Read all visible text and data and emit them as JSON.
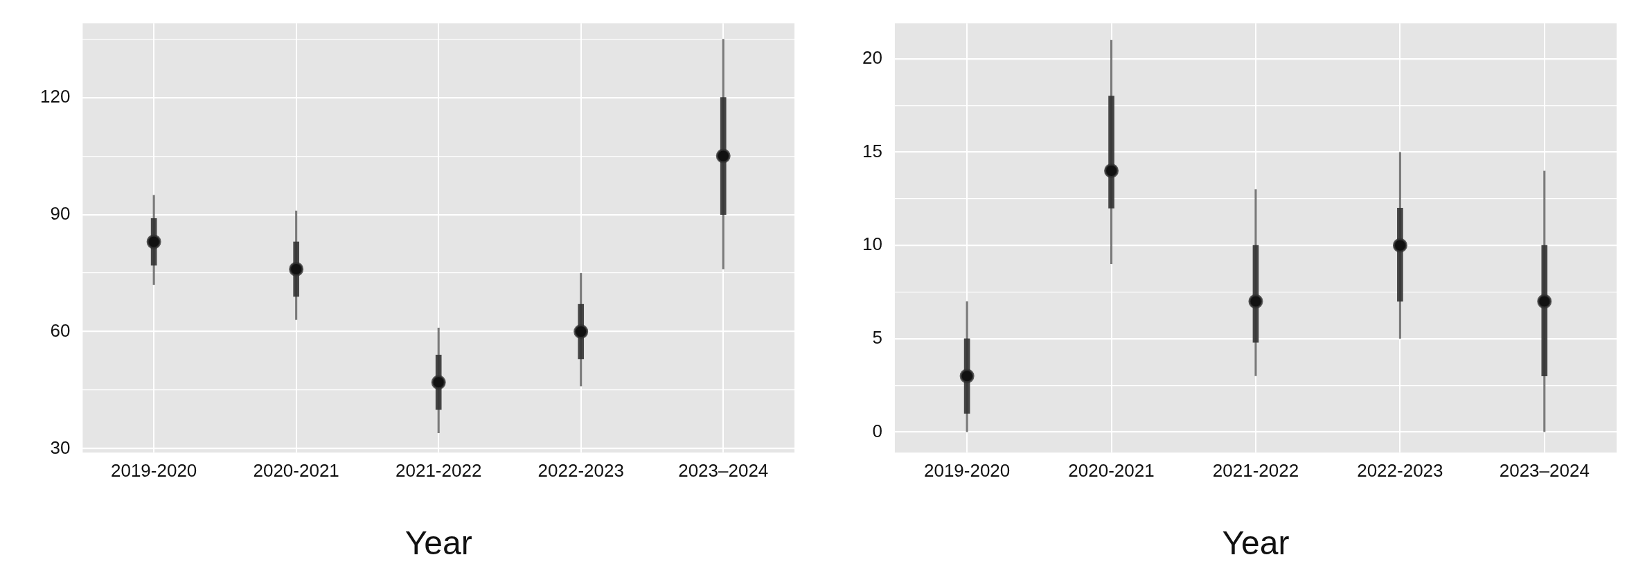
{
  "chart_data": [
    {
      "type": "box",
      "xlabel": "Year",
      "categories": [
        "2019-2020",
        "2020-2021",
        "2021-2022",
        "2022-2023",
        "2023–2024"
      ],
      "series": [
        {
          "color": "#333333",
          "boxes": [
            {
              "low": 72,
              "q1": 77,
              "median": 83,
              "q3": 89,
              "high": 95
            },
            {
              "low": 63,
              "q1": 69,
              "median": 76,
              "q3": 83,
              "high": 91
            },
            {
              "low": 34,
              "q1": 40,
              "median": 47,
              "q3": 54,
              "high": 61
            },
            {
              "low": 46,
              "q1": 53,
              "median": 60,
              "q3": 67,
              "high": 75
            },
            {
              "low": 76,
              "q1": 90,
              "median": 105,
              "q3": 120,
              "high": 135
            }
          ]
        }
      ],
      "ylim": [
        29,
        139
      ],
      "yticks": [
        30,
        {
          "value": 45,
          "label": null
        },
        60,
        {
          "value": 75,
          "label": null
        },
        90,
        {
          "value": 105,
          "label": null
        },
        120,
        {
          "value": 135,
          "label": null
        }
      ],
      "grid": true
    },
    {
      "type": "box",
      "xlabel": "Year",
      "categories": [
        "2019-2020",
        "2020-2021",
        "2021-2022",
        "2022-2023",
        "2023–2024"
      ],
      "series": [
        {
          "color": "#333333",
          "boxes": [
            {
              "low": 0,
              "q1": 1,
              "median": 3,
              "q3": 5,
              "high": 7
            },
            {
              "low": 9,
              "q1": 12,
              "median": 14,
              "q3": 18,
              "high": 21
            },
            {
              "low": 3,
              "q1": 4.8,
              "median": 7,
              "q3": 10,
              "high": 13
            },
            {
              "low": 5,
              "q1": 7,
              "median": 10,
              "q3": 12,
              "high": 15
            },
            {
              "low": 0,
              "q1": 3,
              "median": 7,
              "q3": 10,
              "high": 14
            }
          ]
        }
      ],
      "ylim": [
        -1.1,
        21.9
      ],
      "yticks": [
        0,
        {
          "value": 2.5,
          "label": null
        },
        5,
        {
          "value": 7.5,
          "label": null
        },
        10,
        {
          "value": 12.5,
          "label": null
        },
        15,
        {
          "value": 17.5,
          "label": null
        },
        20
      ],
      "grid": true
    }
  ]
}
